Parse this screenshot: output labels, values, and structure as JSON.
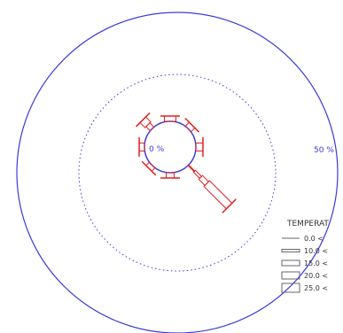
{
  "chart_data": {
    "type": "wind-rose",
    "center_label": "0 %",
    "outer_ring_label": "50 %",
    "rings_percent": [
      25,
      50
    ],
    "legend": {
      "title": "TEMPERAT",
      "entries": [
        "0.0 <",
        "10.0 <",
        "15.0 <",
        "20.0 <",
        "25.0 <"
      ]
    },
    "directions": [
      {
        "dir": "N",
        "angle_deg": 0,
        "percent": 3,
        "bins": [
          "25.0 <"
        ]
      },
      {
        "dir": "NE",
        "angle_deg": 45,
        "percent": 3,
        "bins": [
          "20.0 <"
        ]
      },
      {
        "dir": "E",
        "angle_deg": 90,
        "percent": 4,
        "bins": [
          "20.0 <"
        ]
      },
      {
        "dir": "SE",
        "angle_deg": 135,
        "percent": 18,
        "bins": [
          "0.0 <",
          "10.0 <",
          "15.0 <",
          "20.0 <"
        ]
      },
      {
        "dir": "S",
        "angle_deg": 180,
        "percent": 3,
        "bins": [
          "20.0 <"
        ]
      },
      {
        "dir": "SW",
        "angle_deg": 225,
        "percent": 2.5,
        "bins": [
          "20.0 <"
        ]
      },
      {
        "dir": "W",
        "angle_deg": 270,
        "percent": 3,
        "bins": [
          "20.0 <"
        ]
      },
      {
        "dir": "NW",
        "angle_deg": 315,
        "percent": 4,
        "bins": [
          "15.0 <",
          "20.0 <"
        ]
      }
    ],
    "colors": {
      "rings": "#3b3bdc",
      "petals": "#e02020"
    }
  }
}
